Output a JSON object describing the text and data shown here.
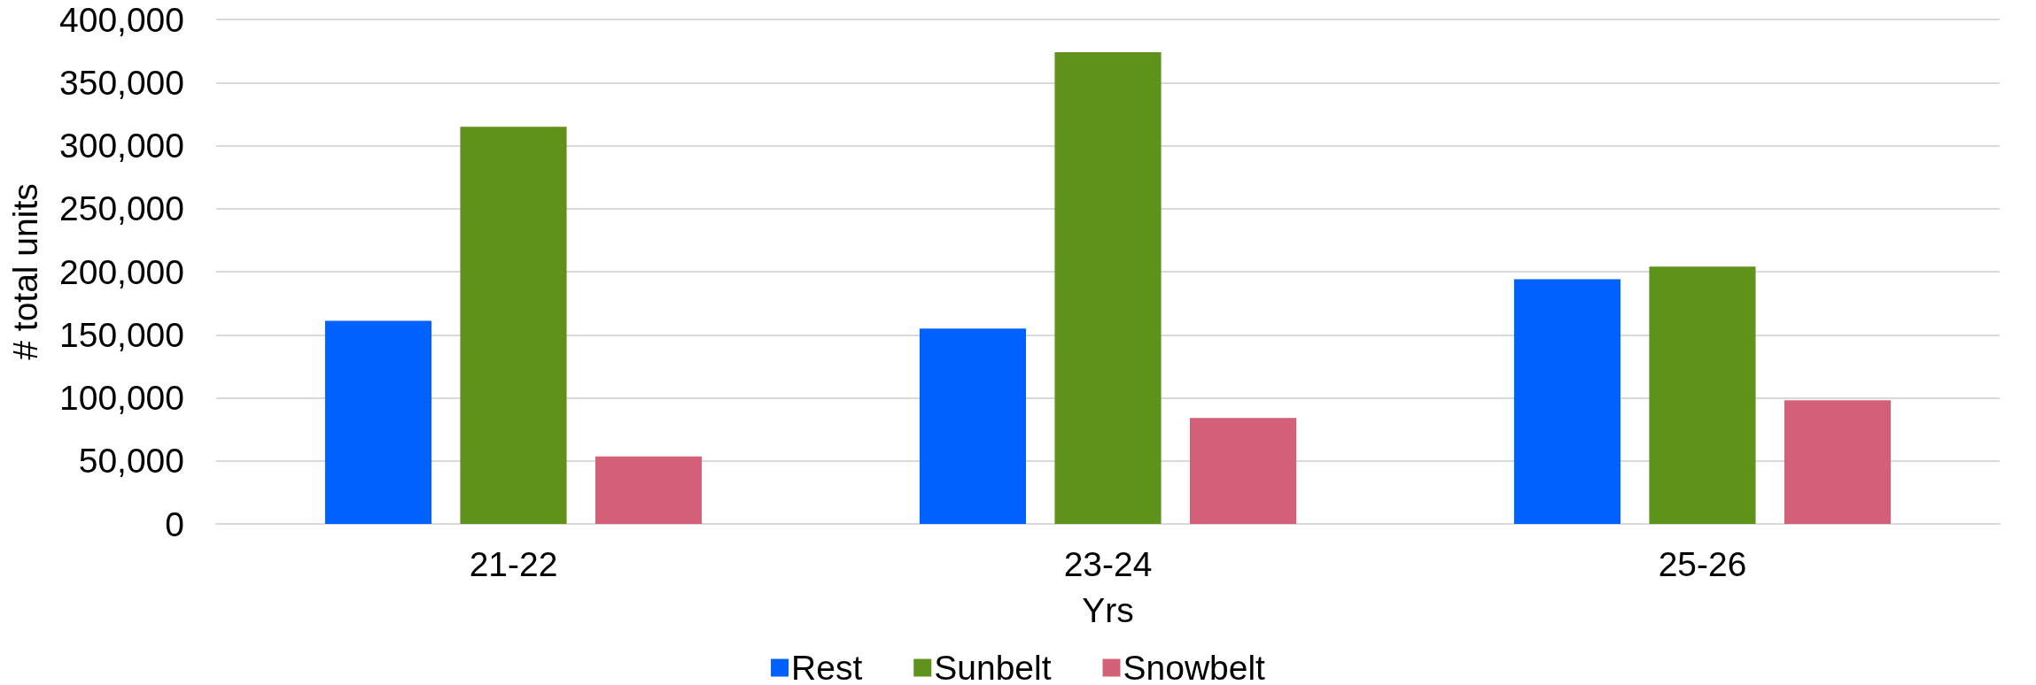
{
  "chart_data": {
    "type": "bar",
    "xlabel": "Yrs",
    "ylabel": "# total units",
    "categories": [
      "21-22",
      "23-24",
      "25-26"
    ],
    "series": [
      {
        "name": "Rest",
        "color": "#0061fe",
        "values": [
          161000,
          155000,
          194000
        ]
      },
      {
        "name": "Sunbelt",
        "color": "#5e921a",
        "values": [
          315000,
          374000,
          204000
        ]
      },
      {
        "name": "Snowbelt",
        "color": "#d36076",
        "values": [
          53500,
          84000,
          98000
        ]
      }
    ],
    "ylim": [
      0,
      400000
    ],
    "yticks": [
      0,
      {
        "value": 50000,
        "label": "50,000"
      },
      {
        "value": 100000,
        "label": "100,000"
      },
      {
        "value": 150000,
        "label": "150,000"
      },
      {
        "value": 200000,
        "label": "200,000"
      },
      {
        "value": 250000,
        "label": "250,000"
      },
      {
        "value": 300000,
        "label": "300,000"
      },
      {
        "value": 350000,
        "label": "350,000"
      },
      {
        "value": 400000,
        "label": "400,000"
      }
    ],
    "grid": "y",
    "legend": "bottom"
  }
}
